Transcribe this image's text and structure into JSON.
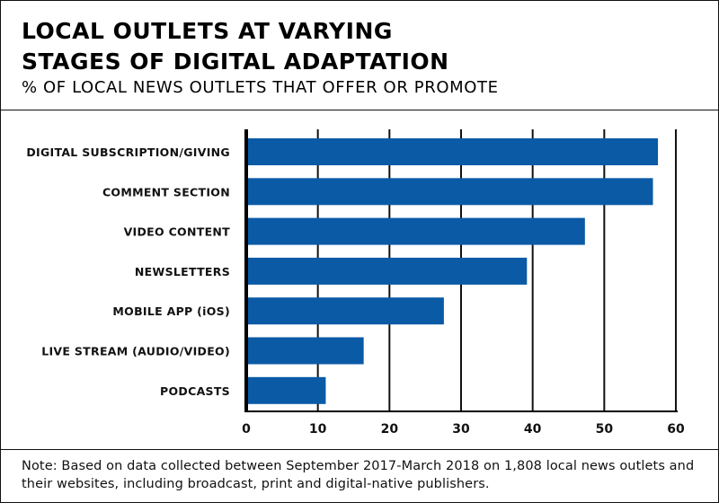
{
  "header": {
    "title_line1": "LOCAL OUTLETS AT VARYING",
    "title_line2": "STAGES OF DIGITAL ADAPTATION",
    "subtitle": "% OF LOCAL NEWS OUTLETS THAT OFFER OR PROMOTE"
  },
  "chart_data": {
    "type": "bar",
    "orientation": "horizontal",
    "title": "LOCAL OUTLETS AT VARYING STAGES OF DIGITAL ADAPTATION",
    "subtitle": "% OF LOCAL NEWS OUTLETS THAT OFFER OR PROMOTE",
    "categories": [
      "DIGITAL SUBSCRIPTION/GIVING",
      "COMMENT SECTION",
      "VIDEO CONTENT",
      "NEWSLETTERS",
      "MOBILE APP (iOS)",
      "LIVE STREAM (AUDIO/VIDEO)",
      "PODCASTS"
    ],
    "values": [
      57.5,
      56.8,
      47.3,
      39.2,
      27.6,
      16.4,
      11.1
    ],
    "xlim": [
      0,
      60
    ],
    "xticks": [
      0,
      10,
      20,
      30,
      40,
      50,
      60
    ],
    "xlabel": "",
    "ylabel": "",
    "grid": "vertical",
    "bar_color": "#0a5aa6"
  },
  "note": "Note: Based on data collected between September 2017-March 2018 on 1,808 local news outlets and their websites, including broadcast, print and digital-native publishers."
}
